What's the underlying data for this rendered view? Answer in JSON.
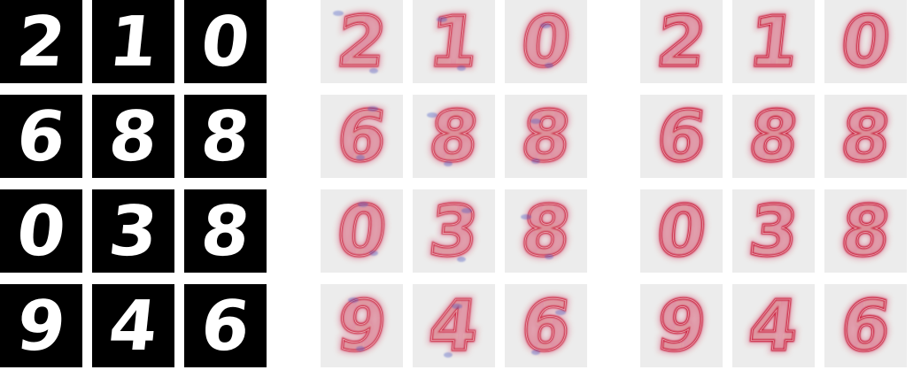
{
  "figure": {
    "description_free": true,
    "grid_rows": 4,
    "grid_cols": 3,
    "panels": [
      {
        "id": "input",
        "style": "grayscale"
      },
      {
        "id": "heatmap-a",
        "style": "relevance-mixed"
      },
      {
        "id": "heatmap-b",
        "style": "relevance-positive"
      }
    ],
    "digits": [
      "2",
      "1",
      "0",
      "6",
      "8",
      "8",
      "0",
      "3",
      "8",
      "9",
      "4",
      "6"
    ],
    "colors": {
      "input_bg": "#000000",
      "input_fg": "#ffffff",
      "heat_bg": "#ececec",
      "heat_pos": "#c8102e",
      "heat_neg": "#3b4cc0"
    }
  }
}
